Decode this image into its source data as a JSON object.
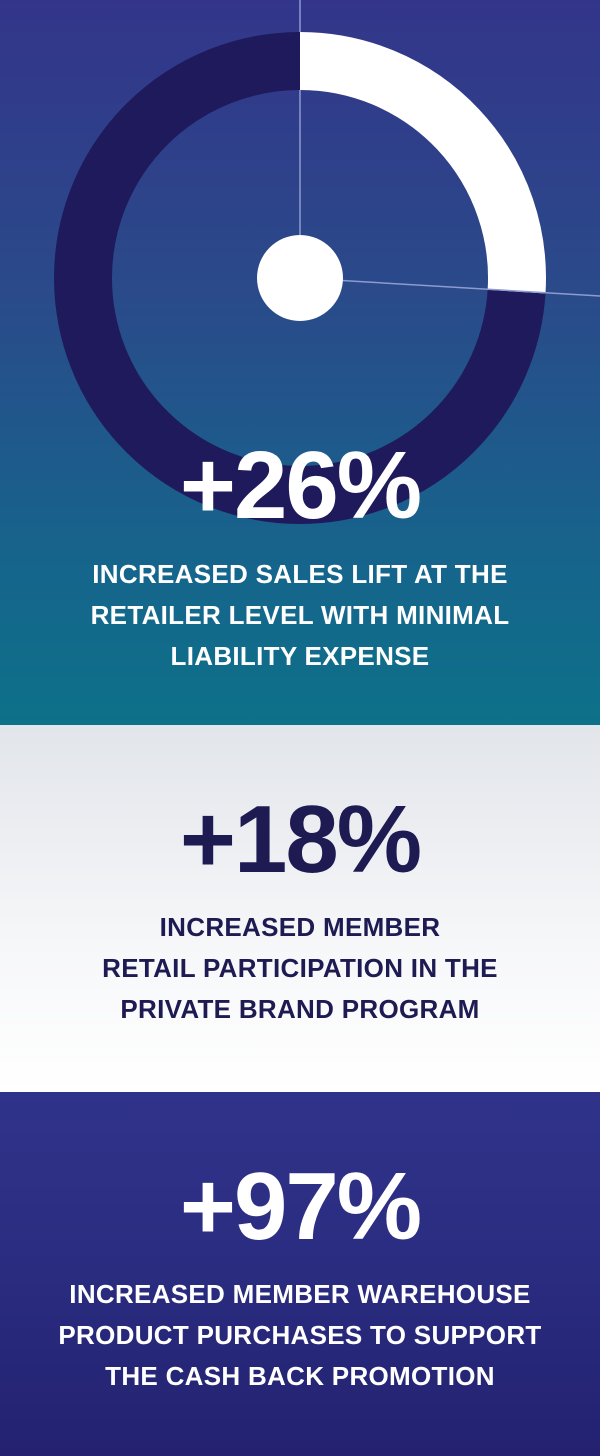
{
  "colors": {
    "top_gradient_start": "#33358a",
    "top_gradient_end": "#0d7189",
    "middle_background": "#eceef2",
    "bottom_background": "#2a2c80",
    "donut_track": "#1f1a5c",
    "donut_highlight": "#ffffff",
    "navy_text": "#1e1a52"
  },
  "donut": {
    "highlight_percent": 26
  },
  "stats": [
    {
      "value": "+26%",
      "lines": [
        "INCREASED SALES LIFT AT THE",
        "RETAILER LEVEL WITH MINIMAL",
        "LIABILITY EXPENSE"
      ]
    },
    {
      "value": "+18%",
      "lines": [
        "INCREASED MEMBER",
        "RETAIL PARTICIPATION IN THE",
        "PRIVATE BRAND PROGRAM"
      ]
    },
    {
      "value": "+97%",
      "lines": [
        "INCREASED MEMBER WAREHOUSE",
        "PRODUCT PURCHASES TO SUPPORT",
        "THE CASH BACK PROMOTION"
      ]
    }
  ]
}
